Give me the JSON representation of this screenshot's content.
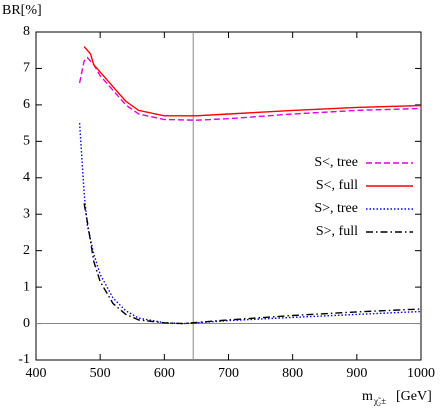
{
  "chart_data": {
    "type": "line",
    "ylabel": "BR[%]",
    "xlabel": "m",
    "xlabel_sub": "χ̃₂±",
    "xlabel_unit": "[GeV]",
    "xlim": [
      400,
      1000
    ],
    "xticks": [
      400,
      500,
      600,
      700,
      800,
      900,
      1000
    ],
    "ylim": [
      -1,
      8
    ],
    "yticks": [
      -1,
      0,
      1,
      2,
      3,
      4,
      5,
      6,
      7,
      8
    ],
    "vline": 645,
    "hline": 0,
    "legend": "right",
    "series": [
      {
        "name": "S<, tree",
        "color": "#e000e0",
        "dash": "6,3",
        "x": [
          468,
          475,
          480,
          490,
          500,
          520,
          540,
          560,
          600,
          650,
          700,
          800,
          900,
          1000
        ],
        "values": [
          6.6,
          7.2,
          7.3,
          7.1,
          6.8,
          6.4,
          6.0,
          5.75,
          5.6,
          5.58,
          5.62,
          5.75,
          5.85,
          5.9
        ]
      },
      {
        "name": "S<, full",
        "color": "#ff0000",
        "dash": "none",
        "x": [
          475,
          485,
          490,
          500,
          520,
          530,
          540,
          560,
          600,
          650,
          700,
          800,
          900,
          1000
        ],
        "values": [
          7.6,
          7.4,
          7.1,
          6.9,
          6.5,
          6.3,
          6.1,
          5.85,
          5.7,
          5.7,
          5.75,
          5.85,
          5.93,
          5.98
        ]
      },
      {
        "name": "S>, tree",
        "color": "#0000ff",
        "dash": "1.5,2",
        "x": [
          468,
          475,
          480,
          490,
          500,
          520,
          540,
          560,
          600,
          630,
          650,
          700,
          800,
          900,
          1000
        ],
        "values": [
          5.5,
          3.6,
          2.7,
          1.9,
          1.35,
          0.7,
          0.35,
          0.15,
          0.02,
          0.0,
          0.02,
          0.08,
          0.17,
          0.25,
          0.33
        ]
      },
      {
        "name": "S>, full",
        "color": "#000000",
        "dash": "7,3,1.5,3",
        "x": [
          475,
          480,
          490,
          500,
          520,
          540,
          560,
          600,
          630,
          650,
          700,
          800,
          900,
          1000
        ],
        "values": [
          3.3,
          2.8,
          1.7,
          1.15,
          0.55,
          0.25,
          0.1,
          0.02,
          0.0,
          0.03,
          0.1,
          0.22,
          0.32,
          0.4
        ]
      }
    ]
  }
}
